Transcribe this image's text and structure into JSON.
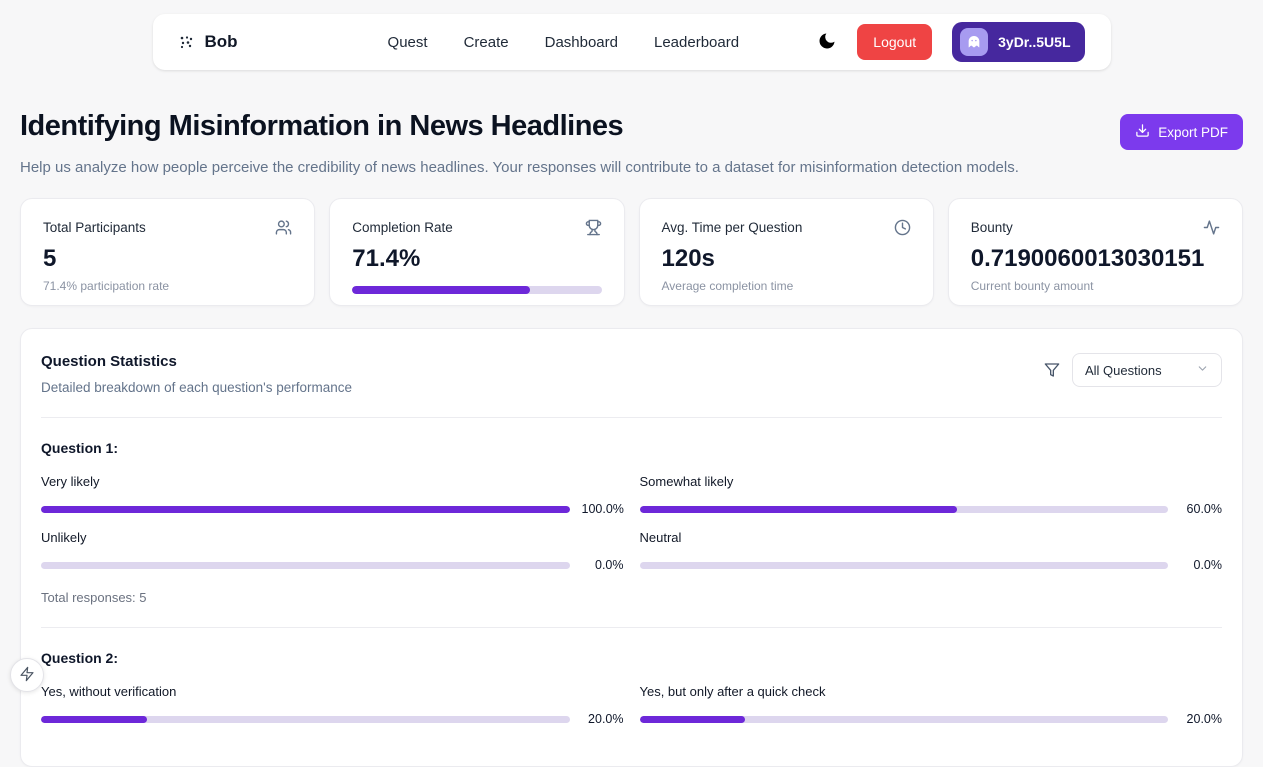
{
  "nav": {
    "brand": "Bob",
    "links": [
      {
        "label": "Quest"
      },
      {
        "label": "Create"
      },
      {
        "label": "Dashboard"
      },
      {
        "label": "Leaderboard"
      }
    ],
    "logout_label": "Logout",
    "wallet_label": "3yDr..5U5L",
    "icons": [
      "logo-dots-icon",
      "moon-icon",
      "phantom-ghost-icon"
    ]
  },
  "header": {
    "title": "Identifying Misinformation in News Headlines",
    "subtitle": "Help us analyze how people perceive the credibility of news headlines. Your responses will contribute to a dataset for misinformation detection models.",
    "export_label": "Export PDF",
    "export_icon": "download-icon"
  },
  "stats": [
    {
      "label": "Total Participants",
      "value": "5",
      "sub": "71.4% participation rate",
      "icon": "users-icon"
    },
    {
      "label": "Completion Rate",
      "value": "71.4%",
      "progress": 71.4,
      "icon": "trophy-icon"
    },
    {
      "label": "Avg. Time per Question",
      "value": "120s",
      "sub": "Average completion time",
      "icon": "clock-icon"
    },
    {
      "label": "Bounty",
      "value": "0.7190060013030151",
      "sub": "Current bounty amount",
      "icon": "activity-icon"
    }
  ],
  "question_stats": {
    "title": "Question Statistics",
    "subtitle": "Detailed breakdown of each question's performance",
    "filter_icon": "filter-icon",
    "filter_value": "All Questions",
    "questions": [
      {
        "title": "Question 1:",
        "options": [
          {
            "label": "Very likely",
            "pct": "100.0%",
            "value": 100
          },
          {
            "label": "Somewhat likely",
            "pct": "60.0%",
            "value": 60
          },
          {
            "label": "Unlikely",
            "pct": "0.0%",
            "value": 0
          },
          {
            "label": "Neutral",
            "pct": "0.0%",
            "value": 0
          }
        ],
        "total": "Total responses: 5"
      },
      {
        "title": "Question 2:",
        "options": [
          {
            "label": "Yes, without verification",
            "pct": "20.0%",
            "value": 20
          },
          {
            "label": "Yes, but only after a quick check",
            "pct": "20.0%",
            "value": 20
          }
        ]
      }
    ]
  },
  "colors": {
    "accent_bar": "#6d28d9",
    "bar_track": "#ddd6ee",
    "export_button": "#7c3aed",
    "wallet_button": "#46289e",
    "wallet_icon_bg": "#a79bf0",
    "logout_button": "#ef4444",
    "page_background": "#f7f7f8"
  }
}
